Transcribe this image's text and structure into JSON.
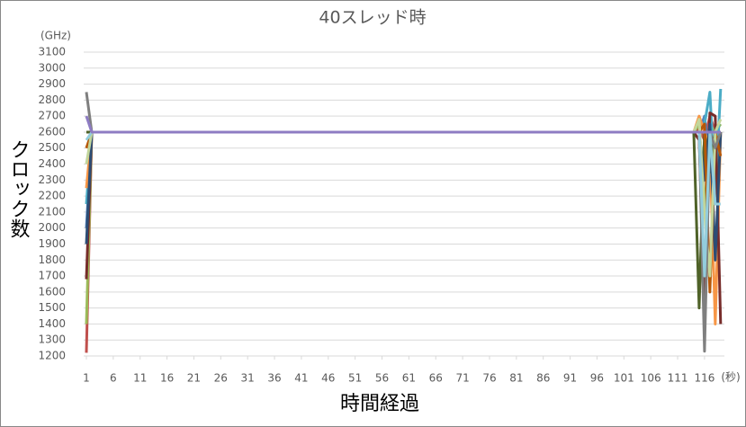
{
  "chart_data": {
    "type": "line",
    "title": "40スレッド時",
    "y_unit": "(GHz)",
    "x_unit": "(秒)",
    "ylabel": "クロック数",
    "xlabel": "時間経過",
    "x": [
      1,
      2,
      3,
      113,
      114,
      115,
      116,
      117,
      118,
      119
    ],
    "xlim": [
      0.5,
      119.7
    ],
    "xticks": [
      1,
      6,
      11,
      16,
      21,
      26,
      31,
      36,
      41,
      46,
      51,
      56,
      61,
      66,
      71,
      76,
      81,
      86,
      91,
      96,
      101,
      106,
      111,
      116
    ],
    "ylim": [
      1200,
      3100
    ],
    "yticks": [
      1200,
      1300,
      1400,
      1500,
      1600,
      1700,
      1800,
      1900,
      2000,
      2100,
      2200,
      2300,
      2400,
      2500,
      2600,
      2700,
      2800,
      2900,
      3000,
      3100
    ],
    "grid": true,
    "series": [
      {
        "color": "#c0504d",
        "values": [
          1220,
          2600,
          2600,
          2600,
          2600,
          2620,
          2550,
          2700,
          2600,
          2580
        ]
      },
      {
        "color": "#4f81bd",
        "values": [
          2000,
          2600,
          2600,
          2600,
          2600,
          2600,
          2700,
          2400,
          2300,
          2300
        ]
      },
      {
        "color": "#9bbb59",
        "values": [
          1400,
          2600,
          2600,
          2600,
          2600,
          2650,
          2100,
          2650,
          2600,
          2650
        ]
      },
      {
        "color": "#4bacc6",
        "values": [
          2150,
          2600,
          2600,
          2600,
          2600,
          2600,
          2650,
          2850,
          2200,
          2870
        ]
      },
      {
        "color": "#f79646",
        "values": [
          2250,
          2600,
          2600,
          2600,
          2600,
          2700,
          2600,
          2500,
          1400,
          2600
        ]
      },
      {
        "color": "#772c2a",
        "values": [
          1680,
          2600,
          2600,
          2600,
          2600,
          2550,
          1560,
          2720,
          2700,
          1400
        ]
      },
      {
        "color": "#4f6228",
        "values": [
          2600,
          2600,
          2600,
          2600,
          2600,
          1500,
          2600,
          2350,
          2600,
          2600
        ]
      },
      {
        "color": "#2c4d75",
        "values": [
          1900,
          2600,
          2600,
          2600,
          2600,
          2600,
          2300,
          2650,
          1800,
          2600
        ]
      },
      {
        "color": "#b65708",
        "values": [
          2500,
          2600,
          2600,
          2600,
          2600,
          2600,
          2650,
          1600,
          2600,
          2450
        ]
      },
      {
        "color": "#c3d69b",
        "values": [
          2400,
          2600,
          2600,
          2600,
          2600,
          2680,
          2100,
          1700,
          2600,
          2680
        ]
      },
      {
        "color": "#7f7f7f",
        "values": [
          2850,
          2600,
          2600,
          2600,
          2600,
          2600,
          1230,
          2600,
          2500,
          2600
        ]
      },
      {
        "color": "#93cddd",
        "values": [
          2550,
          2600,
          2600,
          2600,
          2600,
          2600,
          1700,
          2600,
          2150,
          2150
        ]
      },
      {
        "color": "#8e7cc3",
        "values": [
          2700,
          2600,
          2600,
          2600,
          2600,
          2600,
          2600,
          2600,
          2600,
          2600
        ]
      }
    ]
  }
}
